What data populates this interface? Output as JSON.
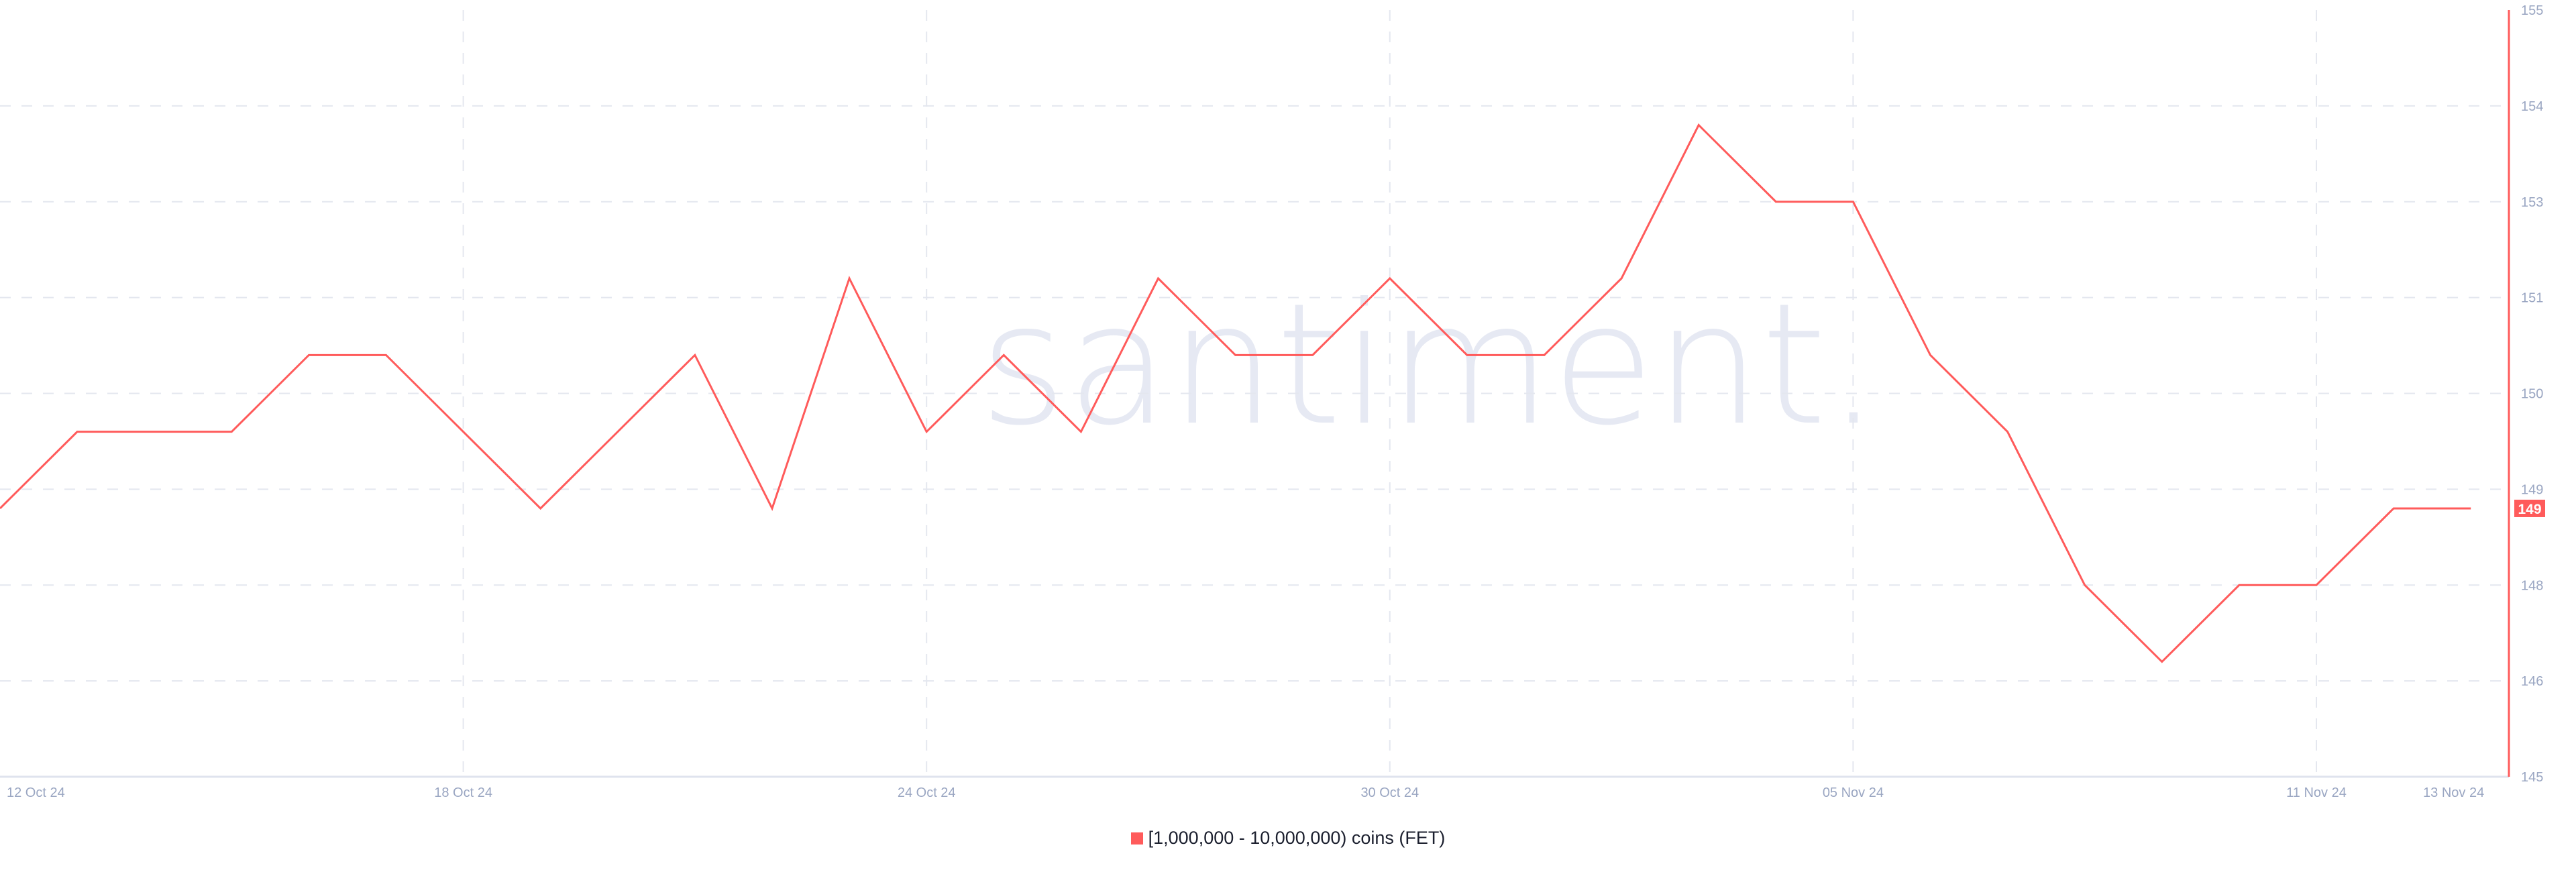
{
  "watermark": "santiment.",
  "chart_data": {
    "type": "line",
    "title": "",
    "xlabel": "",
    "ylabel": "",
    "ylim": [
      145,
      155
    ],
    "grid": true,
    "legend_position": "bottom-center",
    "y_ticks": [
      {
        "value": 155,
        "label": "155"
      },
      {
        "value": 153.75,
        "label": "154"
      },
      {
        "value": 152.5,
        "label": "153"
      },
      {
        "value": 151.25,
        "label": "151"
      },
      {
        "value": 150,
        "label": "150"
      },
      {
        "value": 148.75,
        "label": "149"
      },
      {
        "value": 147.5,
        "label": "148"
      },
      {
        "value": 146.25,
        "label": "146"
      },
      {
        "value": 145,
        "label": "145"
      }
    ],
    "x_ticks": [
      {
        "day": 0,
        "label": "12 Oct 24"
      },
      {
        "day": 6,
        "label": "18 Oct 24"
      },
      {
        "day": 12,
        "label": "24 Oct 24"
      },
      {
        "day": 18,
        "label": "30 Oct 24"
      },
      {
        "day": 24,
        "label": "05 Nov 24"
      },
      {
        "day": 30,
        "label": "11 Nov 24"
      },
      {
        "day": 32,
        "label": "13 Nov 24"
      }
    ],
    "x": [
      "12 Oct 24",
      "13 Oct 24",
      "14 Oct 24",
      "15 Oct 24",
      "16 Oct 24",
      "17 Oct 24",
      "18 Oct 24",
      "19 Oct 24",
      "20 Oct 24",
      "21 Oct 24",
      "22 Oct 24",
      "23 Oct 24",
      "24 Oct 24",
      "25 Oct 24",
      "26 Oct 24",
      "27 Oct 24",
      "28 Oct 24",
      "29 Oct 24",
      "30 Oct 24",
      "31 Oct 24",
      "01 Nov 24",
      "02 Nov 24",
      "03 Nov 24",
      "04 Nov 24",
      "05 Nov 24",
      "06 Nov 24",
      "07 Nov 24",
      "08 Nov 24",
      "09 Nov 24",
      "10 Nov 24",
      "11 Nov 24",
      "12 Nov 24",
      "13 Nov 24"
    ],
    "series": [
      {
        "name": "[1,000,000 - 10,000,000) coins (FET)",
        "color": "#ff5b5b",
        "values": [
          148.5,
          149.5,
          149.5,
          149.5,
          150.5,
          150.5,
          149.5,
          148.5,
          149.5,
          150.5,
          148.5,
          151.5,
          149.5,
          150.5,
          149.5,
          151.5,
          150.5,
          150.5,
          151.5,
          150.5,
          150.5,
          151.5,
          153.5,
          152.5,
          152.5,
          150.5,
          149.5,
          147.5,
          146.5,
          147.5,
          147.5,
          148.5,
          148.5
        ]
      }
    ],
    "last_value_label": "149"
  }
}
